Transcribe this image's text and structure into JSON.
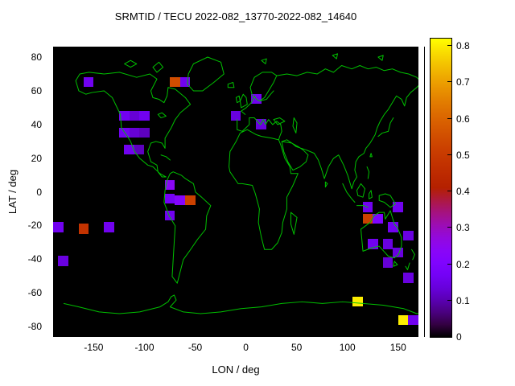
{
  "title": "SRMTID / TECU 2022-082_13770-2022-082_14640",
  "chart_data": {
    "type": "heatmap",
    "title": "SRMTID / TECU 2022-082_13770-2022-082_14640",
    "xlabel": "LON / deg",
    "ylabel": "LAT / deg",
    "units": "TECU",
    "xlim": [
      -190,
      170
    ],
    "ylim": [
      -86,
      86
    ],
    "xticks": [
      -150,
      -100,
      -50,
      0,
      50,
      100,
      150
    ],
    "yticks": [
      -80,
      -60,
      -40,
      -20,
      0,
      20,
      40,
      60,
      80
    ],
    "grid": false,
    "plot_background": "#000000",
    "coastline_color": "#00c000",
    "legend_position": "none",
    "colorbar": {
      "min": 0,
      "max": 0.82,
      "ticks": [
        0,
        0.1,
        0.2,
        0.3,
        0.4,
        0.5,
        0.6,
        0.7,
        0.8
      ],
      "position": "right",
      "palette": "gnuplot pm3d black-violet-red-yellow"
    },
    "cell_size_deg": {
      "lon": 10,
      "lat": 6
    },
    "cells": [
      {
        "lon": -155,
        "lat": 65,
        "value": 0.16
      },
      {
        "lon": -70,
        "lat": 65,
        "value": 0.55
      },
      {
        "lon": -60,
        "lat": 65,
        "value": 0.16
      },
      {
        "lon": 10,
        "lat": 55,
        "value": 0.16
      },
      {
        "lon": -120,
        "lat": 45,
        "value": 0.16
      },
      {
        "lon": -110,
        "lat": 45,
        "value": 0.13
      },
      {
        "lon": -100,
        "lat": 45,
        "value": 0.16
      },
      {
        "lon": -10,
        "lat": 45,
        "value": 0.14
      },
      {
        "lon": -120,
        "lat": 35,
        "value": 0.16
      },
      {
        "lon": -110,
        "lat": 35,
        "value": 0.13
      },
      {
        "lon": -100,
        "lat": 35,
        "value": 0.11
      },
      {
        "lon": 15,
        "lat": 40,
        "value": 0.14
      },
      {
        "lon": -115,
        "lat": 25,
        "value": 0.16
      },
      {
        "lon": -105,
        "lat": 25,
        "value": 0.11
      },
      {
        "lon": -75,
        "lat": 4,
        "value": 0.24
      },
      {
        "lon": -75,
        "lat": -4,
        "value": 0.17
      },
      {
        "lon": -65,
        "lat": -5,
        "value": 0.22
      },
      {
        "lon": -55,
        "lat": -5,
        "value": 0.52
      },
      {
        "lon": -75,
        "lat": -14,
        "value": 0.16
      },
      {
        "lon": -185,
        "lat": -21,
        "value": 0.16
      },
      {
        "lon": -160,
        "lat": -22,
        "value": 0.48
      },
      {
        "lon": -135,
        "lat": -21,
        "value": 0.16
      },
      {
        "lon": -180,
        "lat": -41,
        "value": 0.14
      },
      {
        "lon": 120,
        "lat": -9,
        "value": 0.16
      },
      {
        "lon": 150,
        "lat": -9,
        "value": 0.16
      },
      {
        "lon": 120,
        "lat": -16,
        "value": 0.52
      },
      {
        "lon": 130,
        "lat": -16,
        "value": 0.2
      },
      {
        "lon": 145,
        "lat": -21,
        "value": 0.16
      },
      {
        "lon": 160,
        "lat": -26,
        "value": 0.14
      },
      {
        "lon": 125,
        "lat": -31,
        "value": 0.16
      },
      {
        "lon": 140,
        "lat": -31,
        "value": 0.14
      },
      {
        "lon": 150,
        "lat": -36,
        "value": 0.14
      },
      {
        "lon": 140,
        "lat": -42,
        "value": 0.13
      },
      {
        "lon": 160,
        "lat": -51,
        "value": 0.14
      },
      {
        "lon": 110,
        "lat": -65,
        "value": 0.8
      },
      {
        "lon": 155,
        "lat": -76,
        "value": 0.8
      },
      {
        "lon": 165,
        "lat": -76,
        "value": 0.16
      }
    ]
  }
}
